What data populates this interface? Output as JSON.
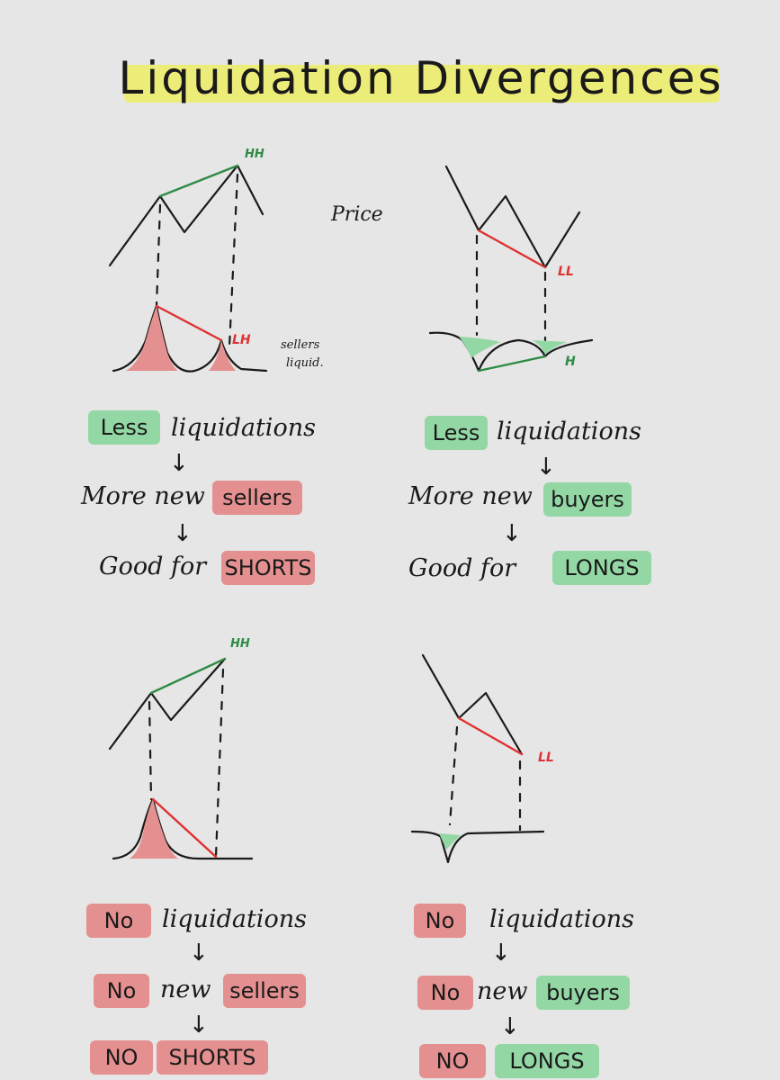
{
  "title": "Liquidation Divergences",
  "price_label": "Price",
  "sellers_liquid_label": [
    "sellers",
    "liquid."
  ],
  "marks": {
    "hh": "HH",
    "lh": "LH",
    "ll": "LL",
    "h": "H"
  },
  "colors": {
    "title_highlight": "#ecec78",
    "green": "#93d7a4",
    "red": "#e59090",
    "green_line": "#2e8b45",
    "red_line": "#e03030"
  },
  "panels": {
    "top_left": {
      "line1": {
        "tag": "Less",
        "text": "liquidations"
      },
      "line2": {
        "text": "More new",
        "tag": "sellers"
      },
      "line3": {
        "text": "Good for",
        "tag": "SHORTS"
      }
    },
    "top_right": {
      "line1": {
        "tag": "Less",
        "text": "liquidations"
      },
      "line2": {
        "text": "More new",
        "tag": "buyers"
      },
      "line3": {
        "text": "Good for",
        "tag": "LONGS"
      }
    },
    "bottom_left": {
      "line1": {
        "tag": "No",
        "text": "liquidations"
      },
      "line2": {
        "tag": "No",
        "text": "new",
        "tag2": "sellers"
      },
      "line3": {
        "tag": "NO",
        "tag2": "SHORTS"
      }
    },
    "bottom_right": {
      "line1": {
        "tag": "No",
        "text": "liquidations"
      },
      "line2": {
        "tag": "No",
        "text": "new",
        "tag2": "buyers"
      },
      "line3": {
        "tag": "NO",
        "tag2": "LONGS"
      }
    }
  },
  "arrow_glyph": "↓"
}
